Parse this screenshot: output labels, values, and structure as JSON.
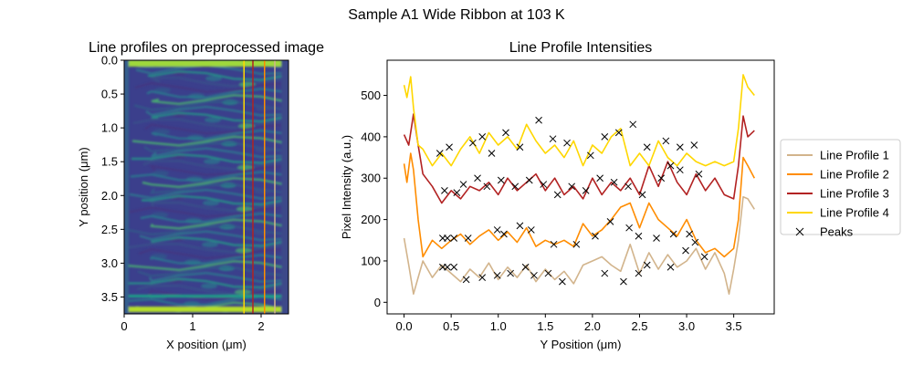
{
  "figure": {
    "suptitle": "Sample A1 Wide Ribbon at 103 K"
  },
  "chart_data": [
    {
      "type": "heatmap",
      "title": "Line profiles on preprocessed image",
      "xlabel": "X position (μm)",
      "ylabel": "Y position (μm)",
      "xlim": [
        0,
        2.4
      ],
      "ylim": [
        3.75,
        0.0
      ],
      "xticks": [
        "0",
        "1",
        "2"
      ],
      "yticks": [
        "0.0",
        "0.5",
        "1.0",
        "1.5",
        "2.0",
        "2.5",
        "3.0",
        "3.5"
      ],
      "colormap": "viridis",
      "profile_lines": [
        {
          "series": "Line Profile 1",
          "x": 2.2,
          "color": "#d2b48c"
        },
        {
          "series": "Line Profile 2",
          "x": 2.05,
          "color": "#ff8c00"
        },
        {
          "series": "Line Profile 3",
          "x": 1.88,
          "color": "#b22222"
        },
        {
          "series": "Line Profile 4",
          "x": 1.75,
          "color": "#ffd700"
        }
      ]
    },
    {
      "type": "line",
      "title": "Line Profile Intensities",
      "xlabel": "Y Position (μm)",
      "ylabel": "Pixel Intensity (a.u.)",
      "xlim": [
        -0.18,
        3.93
      ],
      "ylim": [
        -28,
        585
      ],
      "xticks": [
        "0.0",
        "0.5",
        "1.0",
        "1.5",
        "2.0",
        "2.5",
        "3.0",
        "3.5"
      ],
      "yticks": [
        "0",
        "100",
        "200",
        "300",
        "400",
        "500"
      ],
      "legend_position": "right, outside",
      "series": [
        {
          "name": "Line Profile 1",
          "color": "#d2b48c",
          "x": [
            0.0,
            0.05,
            0.1,
            0.15,
            0.2,
            0.3,
            0.4,
            0.5,
            0.6,
            0.7,
            0.8,
            0.9,
            1.0,
            1.1,
            1.2,
            1.3,
            1.4,
            1.5,
            1.6,
            1.7,
            1.8,
            1.9,
            2.0,
            2.1,
            2.2,
            2.3,
            2.4,
            2.5,
            2.6,
            2.7,
            2.8,
            2.9,
            3.0,
            3.1,
            3.2,
            3.3,
            3.4,
            3.45,
            3.5,
            3.55,
            3.6,
            3.65,
            3.72
          ],
          "y": [
            155,
            90,
            20,
            60,
            100,
            60,
            90,
            70,
            50,
            80,
            60,
            95,
            55,
            85,
            60,
            90,
            50,
            80,
            55,
            75,
            45,
            90,
            100,
            110,
            90,
            75,
            140,
            70,
            120,
            80,
            115,
            85,
            100,
            130,
            80,
            120,
            70,
            20,
            80,
            150,
            255,
            250,
            225
          ]
        },
        {
          "name": "Line Profile 2",
          "color": "#ff8c00",
          "x": [
            0.0,
            0.03,
            0.07,
            0.1,
            0.15,
            0.2,
            0.3,
            0.4,
            0.5,
            0.6,
            0.7,
            0.8,
            0.9,
            1.0,
            1.1,
            1.2,
            1.3,
            1.4,
            1.5,
            1.6,
            1.7,
            1.8,
            1.9,
            2.0,
            2.1,
            2.2,
            2.3,
            2.4,
            2.5,
            2.6,
            2.7,
            2.8,
            2.9,
            3.0,
            3.1,
            3.2,
            3.3,
            3.4,
            3.5,
            3.55,
            3.6,
            3.65,
            3.72
          ],
          "y": [
            335,
            290,
            360,
            320,
            200,
            110,
            150,
            130,
            150,
            165,
            140,
            160,
            175,
            150,
            170,
            145,
            180,
            135,
            150,
            140,
            150,
            135,
            190,
            160,
            175,
            200,
            230,
            240,
            180,
            240,
            200,
            180,
            160,
            200,
            150,
            120,
            130,
            110,
            130,
            200,
            350,
            330,
            300
          ]
        },
        {
          "name": "Line Profile 3",
          "color": "#b22222",
          "x": [
            0.0,
            0.05,
            0.1,
            0.15,
            0.2,
            0.3,
            0.4,
            0.5,
            0.6,
            0.7,
            0.8,
            0.9,
            1.0,
            1.1,
            1.2,
            1.3,
            1.4,
            1.5,
            1.6,
            1.7,
            1.8,
            1.9,
            2.0,
            2.1,
            2.2,
            2.3,
            2.4,
            2.5,
            2.6,
            2.7,
            2.8,
            2.9,
            3.0,
            3.1,
            3.2,
            3.3,
            3.4,
            3.5,
            3.55,
            3.6,
            3.65,
            3.72
          ],
          "y": [
            405,
            380,
            455,
            380,
            310,
            280,
            240,
            270,
            250,
            280,
            270,
            290,
            260,
            300,
            270,
            290,
            310,
            270,
            300,
            260,
            280,
            250,
            300,
            260,
            290,
            270,
            300,
            260,
            330,
            280,
            340,
            290,
            260,
            310,
            270,
            300,
            260,
            250,
            330,
            450,
            400,
            415
          ]
        },
        {
          "name": "Line Profile 4",
          "color": "#ffd700",
          "x": [
            0.0,
            0.03,
            0.07,
            0.1,
            0.15,
            0.2,
            0.3,
            0.4,
            0.5,
            0.6,
            0.7,
            0.8,
            0.9,
            1.0,
            1.1,
            1.2,
            1.3,
            1.4,
            1.5,
            1.6,
            1.7,
            1.8,
            1.9,
            2.0,
            2.1,
            2.2,
            2.3,
            2.4,
            2.5,
            2.6,
            2.7,
            2.8,
            2.9,
            3.0,
            3.1,
            3.2,
            3.3,
            3.4,
            3.5,
            3.55,
            3.6,
            3.65,
            3.72
          ],
          "y": [
            525,
            495,
            545,
            470,
            380,
            370,
            330,
            360,
            330,
            370,
            400,
            360,
            410,
            380,
            400,
            370,
            430,
            390,
            360,
            380,
            350,
            390,
            330,
            380,
            360,
            400,
            420,
            330,
            360,
            330,
            390,
            350,
            330,
            360,
            340,
            330,
            340,
            330,
            340,
            420,
            550,
            520,
            500
          ]
        }
      ],
      "peaks": {
        "name": "Peaks",
        "marker": "x",
        "x": [
          0.41,
          0.46,
          0.53,
          0.66,
          0.83,
          0.99,
          1.13,
          1.29,
          1.38,
          1.53,
          1.68,
          2.13,
          2.33,
          2.49,
          2.58,
          2.83,
          2.99,
          3.19,
          0.41,
          0.46,
          0.53,
          0.68,
          0.99,
          1.06,
          1.23,
          1.35,
          1.59,
          1.83,
          2.03,
          2.19,
          2.39,
          2.49,
          2.68,
          2.86,
          3.03,
          3.09,
          0.43,
          0.56,
          0.63,
          0.78,
          0.88,
          1.03,
          1.18,
          1.33,
          1.48,
          1.63,
          1.78,
          1.93,
          2.08,
          2.23,
          2.38,
          2.53,
          2.73,
          2.83,
          2.93,
          3.13,
          0.38,
          0.48,
          0.73,
          0.83,
          0.93,
          1.08,
          1.23,
          1.43,
          1.58,
          1.73,
          1.98,
          2.13,
          2.28,
          2.43,
          2.58,
          2.78,
          2.93,
          3.08
        ],
        "y": [
          85,
          85,
          85,
          55,
          60,
          65,
          70,
          85,
          65,
          70,
          50,
          70,
          50,
          70,
          90,
          85,
          125,
          110,
          155,
          155,
          155,
          155,
          175,
          165,
          185,
          175,
          140,
          140,
          160,
          195,
          180,
          160,
          155,
          165,
          165,
          145,
          270,
          265,
          285,
          300,
          280,
          295,
          280,
          295,
          285,
          260,
          280,
          270,
          300,
          290,
          280,
          260,
          300,
          330,
          320,
          310,
          360,
          375,
          385,
          400,
          360,
          410,
          375,
          440,
          395,
          385,
          355,
          400,
          410,
          430,
          375,
          390,
          375,
          380
        ]
      }
    }
  ]
}
